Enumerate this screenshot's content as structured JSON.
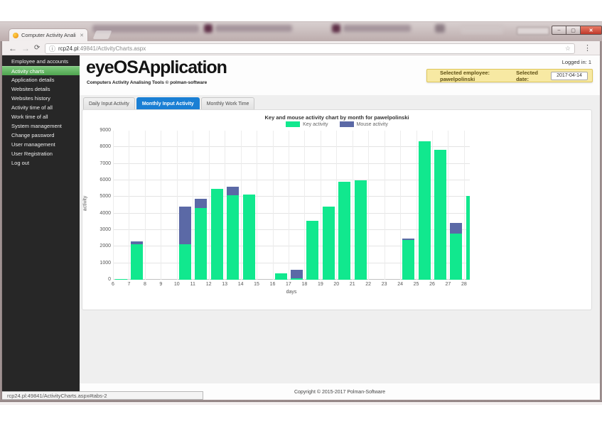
{
  "icons": {
    "back": "←",
    "forward": "→",
    "refresh": "⟳",
    "info": "ⓘ",
    "star": "☆",
    "kebab": "⋮",
    "tab_close": "✕",
    "minimize": "–",
    "maximize": "▢",
    "close": "✕"
  },
  "browser": {
    "tab": {
      "title": "Computer Activity Anali"
    },
    "url": {
      "host": "rcp24.pl",
      "path": ":49841/ActivityCharts.aspx"
    },
    "status_bar": "rcp24.pl:49841/ActivityCharts.aspx#tabs-2"
  },
  "sidebar": {
    "items": [
      {
        "label": "Employee and accounts",
        "active": false
      },
      {
        "label": "Activity charts",
        "active": true
      },
      {
        "label": "Application details",
        "active": false
      },
      {
        "label": "Websites details",
        "active": false
      },
      {
        "label": "Websites history",
        "active": false
      },
      {
        "label": "Activity time of all",
        "active": false
      },
      {
        "label": "Work time of all",
        "active": false
      },
      {
        "label": "System management",
        "active": false
      },
      {
        "label": "Change password",
        "active": false
      },
      {
        "label": "User management",
        "active": false
      },
      {
        "label": "User Registration",
        "active": false
      },
      {
        "label": "Log out",
        "active": false
      }
    ]
  },
  "header": {
    "title": "eyeOSApplication",
    "subtitle": "Computers Activity Analising Tools © polman-software",
    "logged_in": "Logged in: 1"
  },
  "selection_bar": {
    "employee_label": "Selected employee: pawelpolinski",
    "date_label": "Selected date:",
    "date_value": "2017-04-14"
  },
  "tabs": [
    {
      "label": "Daily Input Activity",
      "active": false
    },
    {
      "label": "Monthly Input Activity",
      "active": true
    },
    {
      "label": "Monthly Work Time",
      "active": false
    }
  ],
  "chart_data": {
    "type": "bar",
    "stacked": true,
    "title": "Key and mouse activity chart by month for pawelpolinski",
    "xlabel": "days",
    "ylabel": "activity",
    "ylim": [
      0,
      9000
    ],
    "ytick_step": 1000,
    "x_ticks": [
      6,
      7,
      8,
      9,
      10,
      11,
      12,
      13,
      14,
      15,
      16,
      17,
      18,
      19,
      20,
      21,
      22,
      23,
      24,
      25,
      26,
      27,
      28
    ],
    "legend": [
      {
        "name": "Key activity",
        "color": "#11e88e"
      },
      {
        "name": "Mouse activity",
        "color": "#5b69a6"
      }
    ],
    "series": [
      {
        "name": "Key activity",
        "color": "#11e88e"
      },
      {
        "name": "Mouse activity",
        "color": "#5b69a6"
      }
    ],
    "bars": [
      {
        "day": 6,
        "key": 50,
        "mouse": 0
      },
      {
        "day": 7,
        "key": 2150,
        "mouse": 150
      },
      {
        "day": 10,
        "key": 2150,
        "mouse": 2250
      },
      {
        "day": 11,
        "key": 4350,
        "mouse": 550
      },
      {
        "day": 12,
        "key": 5500,
        "mouse": 0
      },
      {
        "day": 13,
        "key": 5100,
        "mouse": 500
      },
      {
        "day": 14,
        "key": 5150,
        "mouse": 0
      },
      {
        "day": 16,
        "key": 400,
        "mouse": 0
      },
      {
        "day": 17,
        "key": 100,
        "mouse": 500
      },
      {
        "day": 18,
        "key": 3550,
        "mouse": 0
      },
      {
        "day": 19,
        "key": 4400,
        "mouse": 0
      },
      {
        "day": 20,
        "key": 5900,
        "mouse": 0
      },
      {
        "day": 21,
        "key": 6000,
        "mouse": 0
      },
      {
        "day": 24,
        "key": 2400,
        "mouse": 100
      },
      {
        "day": 25,
        "key": 8350,
        "mouse": 0
      },
      {
        "day": 26,
        "key": 7850,
        "mouse": 0
      },
      {
        "day": 27,
        "key": 2800,
        "mouse": 650
      },
      {
        "day": 28,
        "key": 5050,
        "mouse": 0
      }
    ]
  },
  "footer": {
    "copyright": "Copyright © 2015-2017 Polman-Software"
  }
}
